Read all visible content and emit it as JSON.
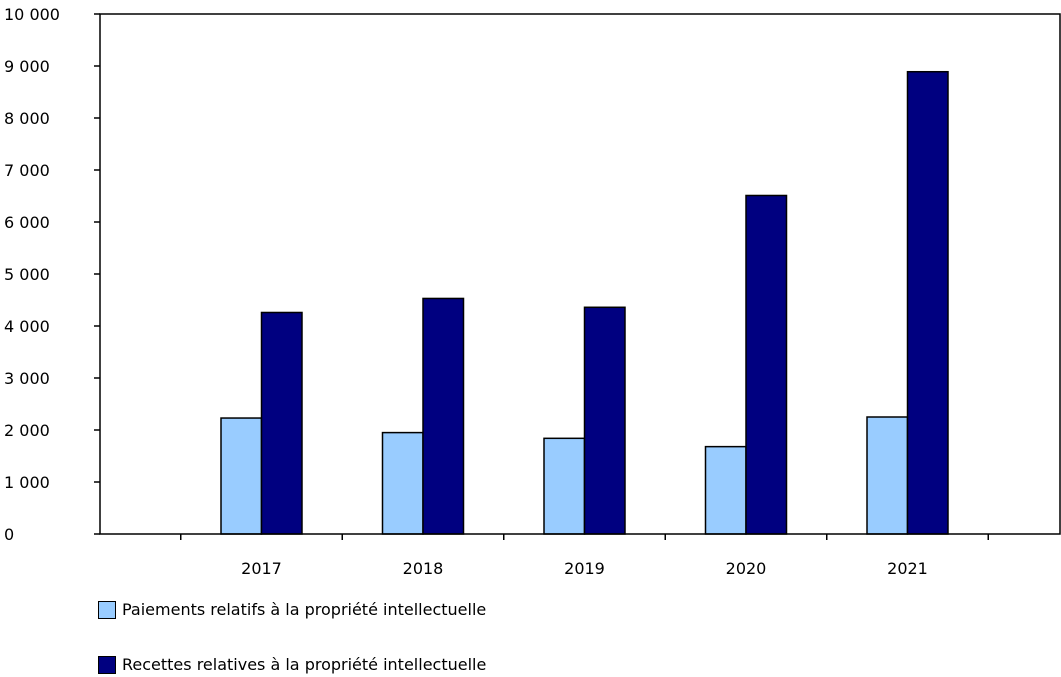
{
  "chart_data": {
    "type": "bar",
    "title": "",
    "xlabel": "",
    "ylabel": "",
    "categories": [
      "2017",
      "2018",
      "2019",
      "2020",
      "2021"
    ],
    "ylim": [
      0,
      10000
    ],
    "yticks": [
      0,
      1000,
      2000,
      3000,
      4000,
      5000,
      6000,
      7000,
      8000,
      9000,
      10000
    ],
    "ytick_labels": [
      "0",
      "1 000",
      "2 000",
      "3 000",
      "4 000",
      "5 000",
      "6 000",
      "7 000",
      "8 000",
      "9 000",
      "10 000"
    ],
    "grid": false,
    "legend_position": "bottom-left",
    "series": [
      {
        "name": "Paiements relatifs à la propriété intellectuelle",
        "color": "#99ccff",
        "values": [
          2230,
          1950,
          1840,
          1680,
          2250
        ]
      },
      {
        "name": "Recettes relatives à la propriété intellectuelle",
        "color": "#000080",
        "values": [
          4260,
          4530,
          4360,
          6510,
          8890
        ]
      }
    ]
  }
}
